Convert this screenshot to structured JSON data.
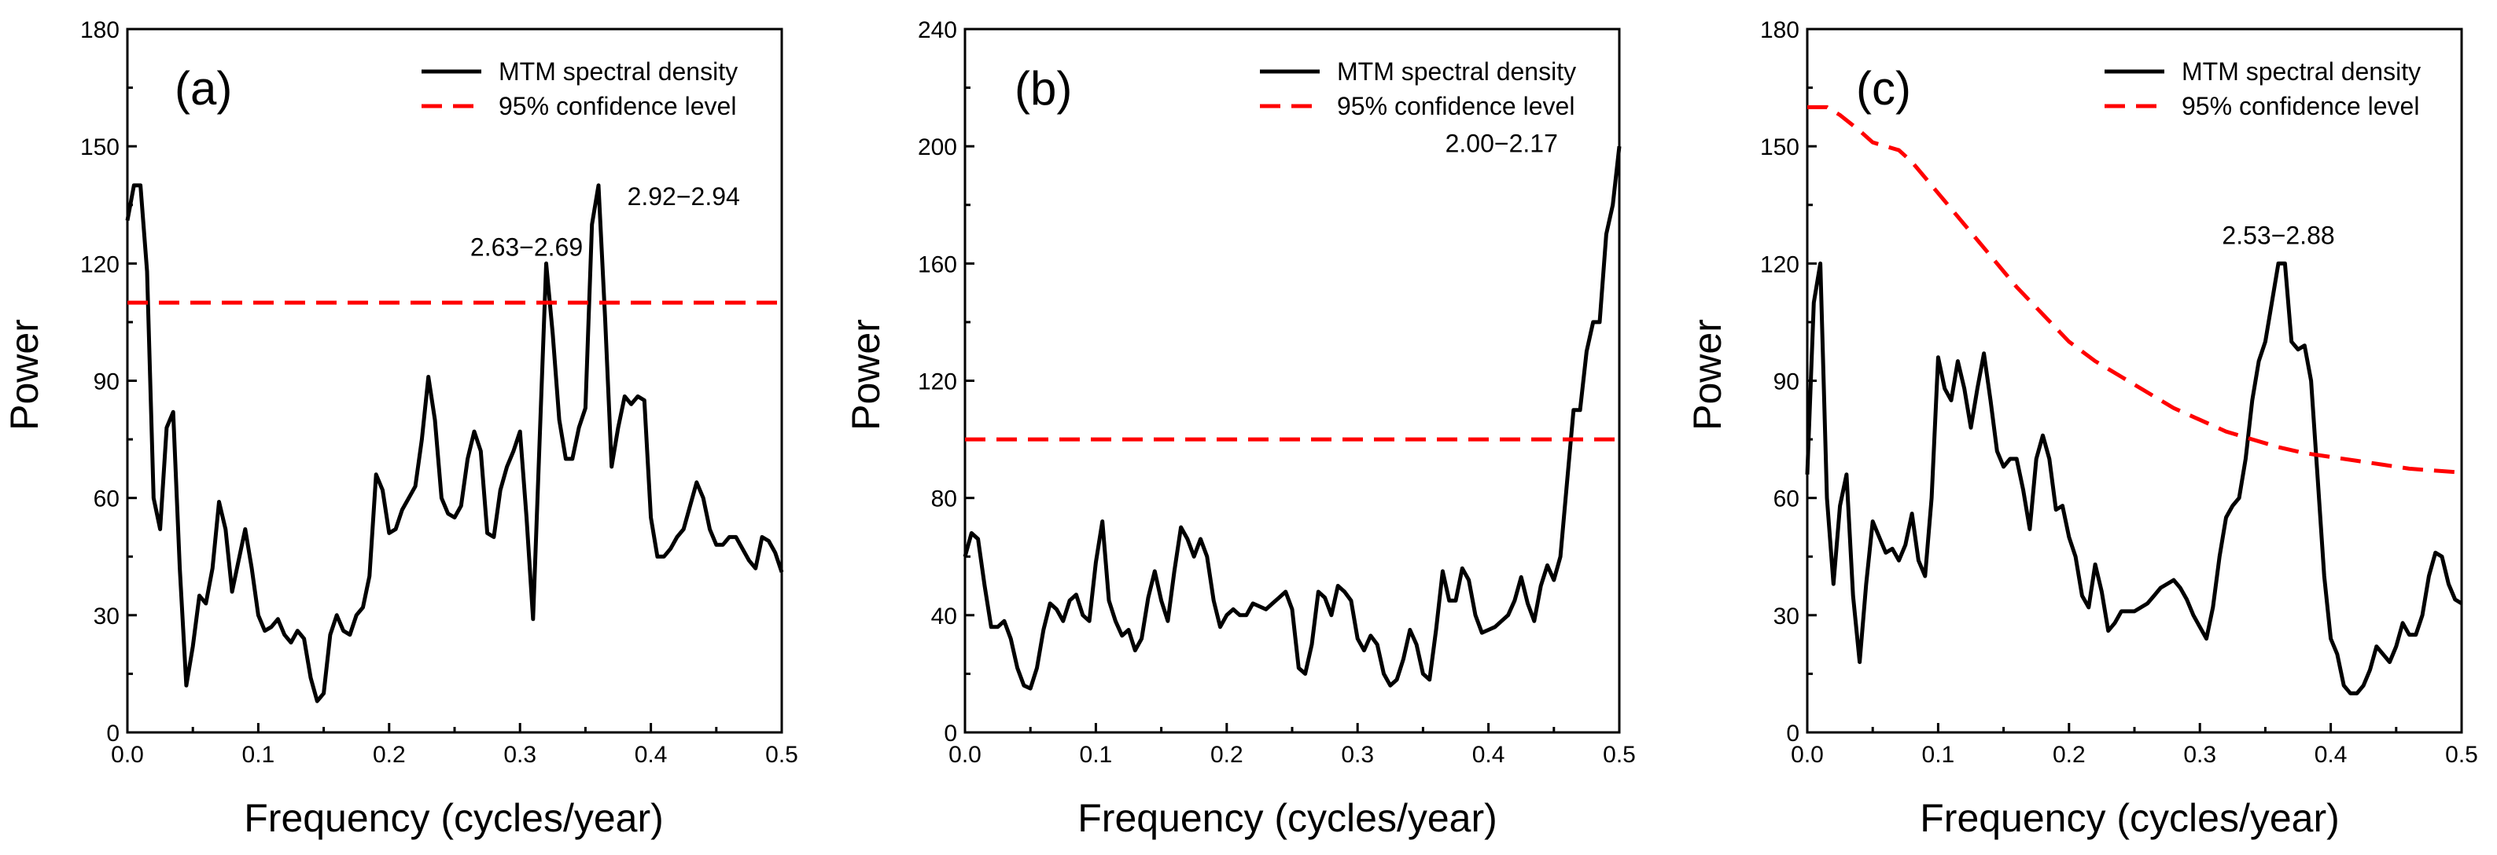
{
  "chart_data": [
    {
      "type": "line",
      "panel_label": "(a)",
      "xlabel": "Frequency (cycles/year)",
      "ylabel": "Power",
      "xlim": [
        0,
        0.5
      ],
      "ylim": [
        0,
        180
      ],
      "xticks": [
        0,
        0.1,
        0.2,
        0.3,
        0.4,
        0.5
      ],
      "xtick_labels": [
        "0.0",
        "0.1",
        "0.2",
        "0.3",
        "0.4",
        "0.5"
      ],
      "yticks": [
        0,
        30,
        60,
        90,
        120,
        150,
        180
      ],
      "ytick_labels": [
        "0",
        "30",
        "60",
        "90",
        "120",
        "150",
        "180"
      ],
      "legend": {
        "position": "top-right",
        "entries": [
          "MTM spectral density",
          "95% confidence level"
        ]
      },
      "annotations": [
        {
          "text": "2.63−2.69",
          "x": 0.305,
          "y": 122
        },
        {
          "text": "2.92−2.94",
          "x": 0.425,
          "y": 135
        }
      ],
      "series": [
        {
          "name": "MTM spectral density",
          "x": [
            0,
            0.005,
            0.01,
            0.015,
            0.02,
            0.025,
            0.03,
            0.035,
            0.04,
            0.045,
            0.05,
            0.055,
            0.06,
            0.065,
            0.07,
            0.075,
            0.08,
            0.085,
            0.09,
            0.095,
            0.1,
            0.105,
            0.11,
            0.115,
            0.12,
            0.125,
            0.13,
            0.135,
            0.14,
            0.145,
            0.15,
            0.155,
            0.16,
            0.165,
            0.17,
            0.175,
            0.18,
            0.185,
            0.19,
            0.195,
            0.2,
            0.205,
            0.21,
            0.215,
            0.22,
            0.225,
            0.23,
            0.235,
            0.24,
            0.245,
            0.25,
            0.255,
            0.26,
            0.265,
            0.27,
            0.275,
            0.28,
            0.285,
            0.29,
            0.295,
            0.3,
            0.305,
            0.31,
            0.315,
            0.32,
            0.325,
            0.33,
            0.335,
            0.34,
            0.345,
            0.35,
            0.355,
            0.36,
            0.365,
            0.37,
            0.375,
            0.38,
            0.385,
            0.39,
            0.395,
            0.4,
            0.405,
            0.41,
            0.415,
            0.42,
            0.425,
            0.43,
            0.435,
            0.44,
            0.445,
            0.45,
            0.455,
            0.46,
            0.465,
            0.47,
            0.475,
            0.48,
            0.485,
            0.49,
            0.495,
            0.5
          ],
          "values": [
            131,
            140,
            140,
            118,
            60,
            52,
            78,
            82,
            42,
            12,
            22,
            35,
            33,
            42,
            59,
            52,
            36,
            44,
            52,
            42,
            30,
            26,
            27,
            29,
            25,
            23,
            26,
            24,
            14,
            8,
            10,
            25,
            30,
            26,
            25,
            30,
            32,
            40,
            66,
            62,
            51,
            52,
            57,
            60,
            63,
            75,
            91,
            80,
            60,
            56,
            55,
            58,
            70,
            77,
            72,
            51,
            50,
            62,
            68,
            72,
            77,
            55,
            29,
            75,
            120,
            102,
            80,
            70,
            70,
            78,
            83,
            130,
            140,
            106,
            68,
            78,
            86,
            84,
            86,
            85,
            55,
            45,
            45,
            47,
            50,
            52,
            58,
            64,
            60,
            52,
            48,
            48,
            50,
            50,
            47,
            44,
            42,
            50,
            49,
            46,
            41
          ]
        },
        {
          "name": "95% confidence level",
          "x": [
            0,
            0.5
          ],
          "values": [
            110,
            110
          ]
        }
      ]
    },
    {
      "type": "line",
      "panel_label": "(b)",
      "xlabel": "Frequency (cycles/year)",
      "ylabel": "Power",
      "xlim": [
        0,
        0.5
      ],
      "ylim": [
        0,
        240
      ],
      "xticks": [
        0,
        0.1,
        0.2,
        0.3,
        0.4,
        0.5
      ],
      "xtick_labels": [
        "0.0",
        "0.1",
        "0.2",
        "0.3",
        "0.4",
        "0.5"
      ],
      "yticks": [
        0,
        40,
        80,
        120,
        160,
        200,
        240
      ],
      "ytick_labels": [
        "0",
        "40",
        "80",
        "120",
        "160",
        "200",
        "240"
      ],
      "legend": {
        "position": "top-right",
        "entries": [
          "MTM spectral density",
          "95% confidence level"
        ]
      },
      "annotations": [
        {
          "text": "2.00−2.17",
          "x": 0.41,
          "y": 198
        }
      ],
      "series": [
        {
          "name": "MTM spectral density",
          "x": [
            0,
            0.005,
            0.01,
            0.015,
            0.02,
            0.025,
            0.03,
            0.035,
            0.04,
            0.045,
            0.05,
            0.055,
            0.06,
            0.065,
            0.07,
            0.075,
            0.08,
            0.085,
            0.09,
            0.095,
            0.1,
            0.105,
            0.11,
            0.115,
            0.12,
            0.125,
            0.13,
            0.135,
            0.14,
            0.145,
            0.15,
            0.155,
            0.16,
            0.165,
            0.17,
            0.175,
            0.18,
            0.185,
            0.19,
            0.195,
            0.2,
            0.205,
            0.21,
            0.215,
            0.22,
            0.225,
            0.23,
            0.235,
            0.24,
            0.245,
            0.25,
            0.255,
            0.26,
            0.265,
            0.27,
            0.275,
            0.28,
            0.285,
            0.29,
            0.295,
            0.3,
            0.305,
            0.31,
            0.315,
            0.32,
            0.325,
            0.33,
            0.335,
            0.34,
            0.345,
            0.35,
            0.355,
            0.36,
            0.365,
            0.37,
            0.375,
            0.38,
            0.385,
            0.39,
            0.395,
            0.4,
            0.405,
            0.41,
            0.415,
            0.42,
            0.425,
            0.43,
            0.435,
            0.44,
            0.445,
            0.45,
            0.455,
            0.46,
            0.465,
            0.47,
            0.475,
            0.48,
            0.485,
            0.49,
            0.495,
            0.5
          ],
          "values": [
            60,
            68,
            66,
            50,
            36,
            36,
            38,
            32,
            22,
            16,
            15,
            22,
            35,
            44,
            42,
            38,
            45,
            47,
            40,
            38,
            58,
            72,
            45,
            38,
            33,
            35,
            28,
            32,
            46,
            55,
            45,
            38,
            55,
            70,
            66,
            60,
            66,
            60,
            45,
            36,
            40,
            42,
            40,
            40,
            44,
            43,
            42,
            44,
            46,
            48,
            42,
            22,
            20,
            30,
            48,
            46,
            40,
            50,
            48,
            45,
            32,
            28,
            33,
            30,
            20,
            16,
            18,
            25,
            35,
            30,
            20,
            18,
            35,
            55,
            45,
            45,
            56,
            52,
            40,
            34,
            35,
            36,
            38,
            40,
            45,
            53,
            44,
            38,
            50,
            57,
            52,
            60,
            85,
            110,
            110,
            130,
            140,
            140,
            170,
            180,
            200
          ]
        },
        {
          "name": "95% confidence level",
          "x": [
            0,
            0.5
          ],
          "values": [
            100,
            100
          ]
        }
      ]
    },
    {
      "type": "line",
      "panel_label": "(c)",
      "xlabel": "Frequency (cycles/year)",
      "ylabel": "Power",
      "xlim": [
        0,
        0.5
      ],
      "ylim": [
        0,
        180
      ],
      "xticks": [
        0,
        0.1,
        0.2,
        0.3,
        0.4,
        0.5
      ],
      "xtick_labels": [
        "0.0",
        "0.1",
        "0.2",
        "0.3",
        "0.4",
        "0.5"
      ],
      "yticks": [
        0,
        30,
        60,
        90,
        120,
        150,
        180
      ],
      "ytick_labels": [
        "0",
        "30",
        "60",
        "90",
        "120",
        "150",
        "180"
      ],
      "legend": {
        "position": "top-right",
        "entries": [
          "MTM spectral density",
          "95% confidence level"
        ]
      },
      "annotations": [
        {
          "text": "2.53−2.88",
          "x": 0.36,
          "y": 125
        }
      ],
      "series": [
        {
          "name": "MTM spectral density",
          "x": [
            0,
            0.005,
            0.01,
            0.015,
            0.02,
            0.025,
            0.03,
            0.035,
            0.04,
            0.045,
            0.05,
            0.055,
            0.06,
            0.065,
            0.07,
            0.075,
            0.08,
            0.085,
            0.09,
            0.095,
            0.1,
            0.105,
            0.11,
            0.115,
            0.12,
            0.125,
            0.13,
            0.135,
            0.14,
            0.145,
            0.15,
            0.155,
            0.16,
            0.165,
            0.17,
            0.175,
            0.18,
            0.185,
            0.19,
            0.195,
            0.2,
            0.205,
            0.21,
            0.215,
            0.22,
            0.225,
            0.23,
            0.235,
            0.24,
            0.245,
            0.25,
            0.255,
            0.26,
            0.265,
            0.27,
            0.275,
            0.28,
            0.285,
            0.29,
            0.295,
            0.3,
            0.305,
            0.31,
            0.315,
            0.32,
            0.325,
            0.33,
            0.335,
            0.34,
            0.345,
            0.35,
            0.355,
            0.36,
            0.365,
            0.37,
            0.375,
            0.38,
            0.385,
            0.39,
            0.395,
            0.4,
            0.405,
            0.41,
            0.415,
            0.42,
            0.425,
            0.43,
            0.435,
            0.44,
            0.445,
            0.45,
            0.455,
            0.46,
            0.465,
            0.47,
            0.475,
            0.48,
            0.485,
            0.49,
            0.495,
            0.5
          ],
          "values": [
            66,
            110,
            120,
            60,
            38,
            58,
            66,
            35,
            18,
            38,
            54,
            50,
            46,
            47,
            44,
            48,
            56,
            44,
            40,
            60,
            96,
            88,
            85,
            95,
            88,
            78,
            88,
            97,
            85,
            72,
            68,
            70,
            70,
            62,
            52,
            70,
            76,
            70,
            57,
            58,
            50,
            45,
            35,
            32,
            43,
            36,
            26,
            28,
            31,
            31,
            31,
            32,
            33,
            35,
            37,
            38,
            39,
            37,
            34,
            30,
            27,
            24,
            32,
            45,
            55,
            58,
            60,
            70,
            85,
            95,
            100,
            110,
            120,
            120,
            100,
            98,
            99,
            90,
            65,
            40,
            24,
            20,
            12,
            10,
            10,
            12,
            16,
            22,
            20,
            18,
            22,
            28,
            25,
            25,
            30,
            40,
            46,
            45,
            38,
            34,
            33
          ]
        },
        {
          "name": "95% confidence level",
          "x": [
            0,
            0.015,
            0.025,
            0.04,
            0.05,
            0.06,
            0.07,
            0.08,
            0.1,
            0.12,
            0.14,
            0.16,
            0.18,
            0.2,
            0.22,
            0.24,
            0.26,
            0.28,
            0.3,
            0.32,
            0.34,
            0.36,
            0.38,
            0.4,
            0.42,
            0.44,
            0.46,
            0.48,
            0.5
          ],
          "values": [
            160,
            160,
            158,
            154,
            151,
            150,
            149,
            146,
            138,
            130,
            122,
            114,
            107,
            100,
            95,
            91,
            87,
            83,
            80,
            77,
            75,
            73,
            71.5,
            70.5,
            69.5,
            68.5,
            67.5,
            67,
            66.5
          ]
        }
      ]
    }
  ]
}
